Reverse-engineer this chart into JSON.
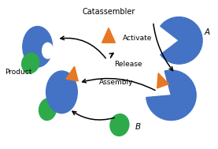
{
  "blue_color": "#4472C4",
  "green_color": "#2EAA4A",
  "orange_color": "#E87722",
  "text_color": "#000000",
  "bg_color": "#FFFFFF",
  "labels": {
    "catassembler": "Catassembler",
    "activate": "Activate",
    "assembly": "Assembly",
    "release": "Release",
    "product": "Product",
    "A": "A",
    "B": "B"
  }
}
